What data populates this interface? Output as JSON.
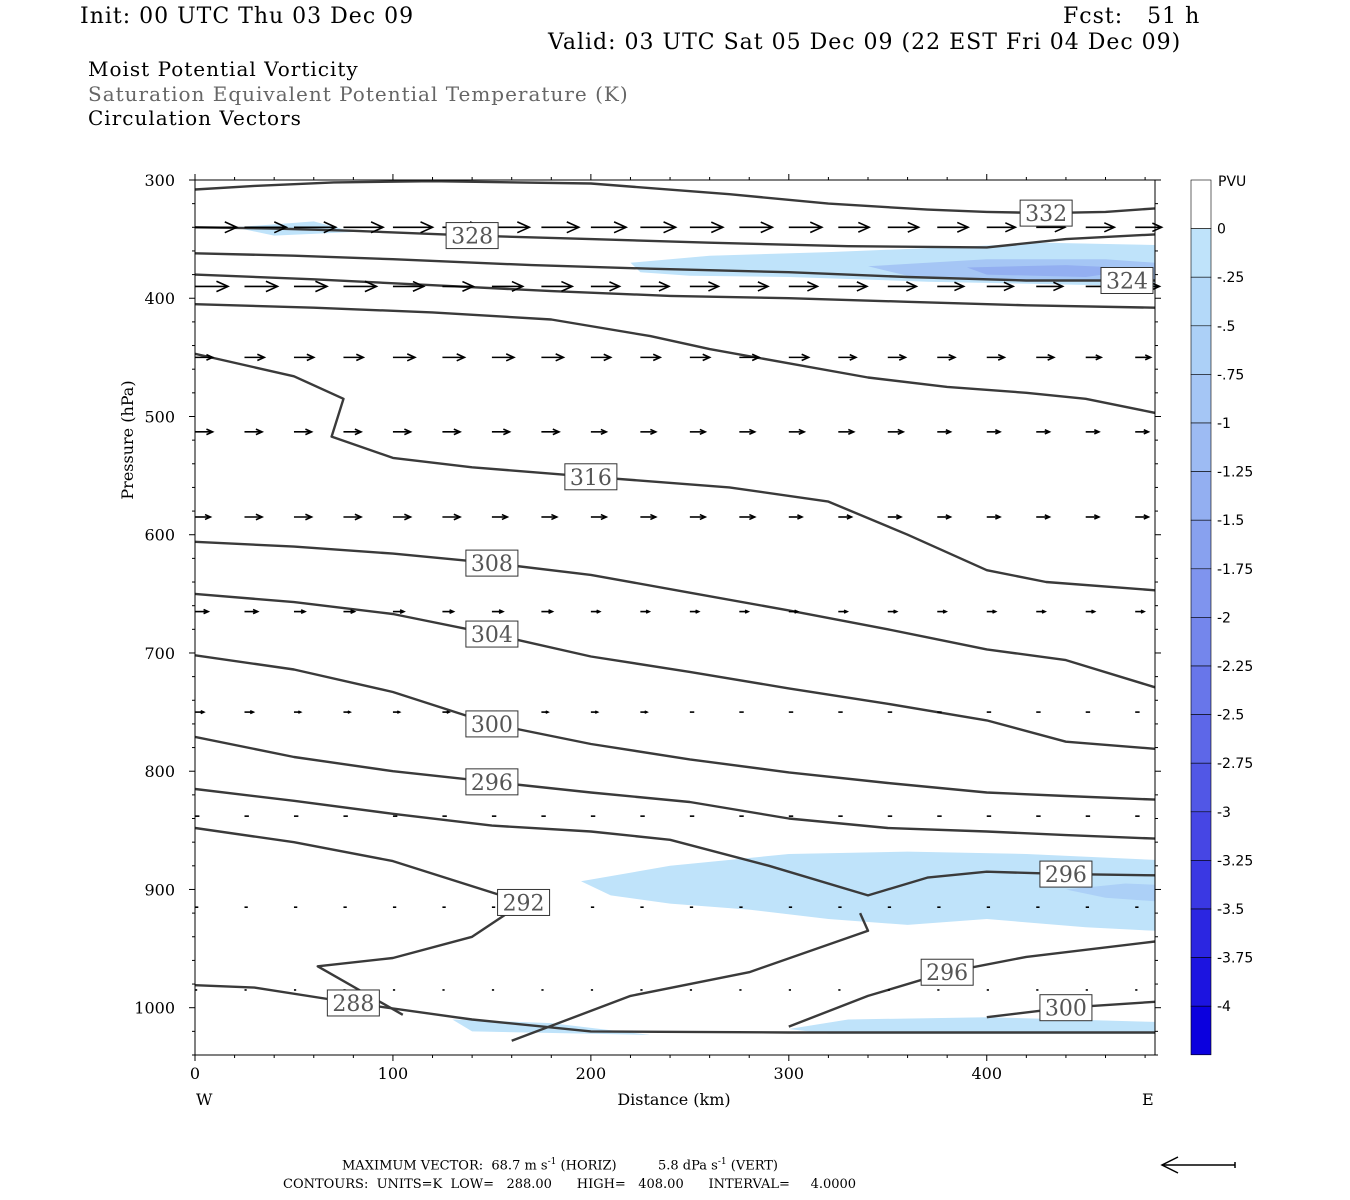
{
  "header": {
    "init": "Init: 00 UTC Thu 03 Dec 09",
    "fcst": "Fcst:   51 h",
    "valid": "Valid: 03 UTC Sat 05 Dec 09 (22 EST Fri 04 Dec 09)",
    "field1": "Moist Potential Vorticity",
    "field2": "Saturation Equivalent Potential Temperature (K)",
    "field3": "Circulation Vectors"
  },
  "footer": {
    "max_vector_label": "MAXIMUM VECTOR:",
    "max_vector_horiz": "68.7 m s",
    "horiz_label": "(HORIZ)",
    "max_vector_vert": "5.8 dPa s",
    "vert_label": "(VERT)",
    "exp": "-1",
    "contours": "CONTOURS:  UNITS=K  LOW=   288.00      HIGH=   408.00      INTERVAL=     4.0000"
  },
  "chart_data": {
    "type": "cross-section",
    "title": "Moist Potential Vorticity / Saturation Equivalent Potential Temperature (K) / Circulation Vectors",
    "xlabel": "Distance (km)",
    "ylabel": "Pressure (hPa)",
    "xlim": [
      0,
      485
    ],
    "ylim": [
      1040,
      300
    ],
    "x_ticks": [
      0,
      100,
      200,
      300,
      400
    ],
    "y_ticks": [
      300,
      400,
      500,
      600,
      700,
      800,
      900,
      1000
    ],
    "x_end_labels": [
      "W",
      "E"
    ],
    "colorbar": {
      "unit": "PVU",
      "labels": [
        "0",
        "-.25",
        "-.5",
        "-.75",
        "-1",
        "-1.25",
        "-1.5",
        "-1.75",
        "-2",
        "-2.25",
        "-2.5",
        "-2.75",
        "-3",
        "-3.25",
        "-3.5",
        "-3.75",
        "-4"
      ],
      "colors": [
        "#ffffff",
        "#bfe3fa",
        "#b4d9f9",
        "#acd0f7",
        "#a5c6f5",
        "#9dbbf3",
        "#93aff1",
        "#88a1ef",
        "#7f94ee",
        "#7486ec",
        "#6876ea",
        "#5d67e8",
        "#5157e6",
        "#4646e4",
        "#3a38e3",
        "#2b26e1",
        "#1c14e0",
        "#0b00de"
      ]
    },
    "theta_es_contours": [
      {
        "level": 332,
        "label": "332",
        "points": [
          [
            0,
            308
          ],
          [
            30,
            305
          ],
          [
            70,
            302
          ],
          [
            120,
            301
          ],
          [
            200,
            303
          ],
          [
            270,
            312
          ],
          [
            320,
            320
          ],
          [
            370,
            325
          ],
          [
            400,
            327
          ],
          [
            430,
            328
          ],
          [
            460,
            327
          ],
          [
            485,
            324
          ]
        ]
      },
      {
        "level": 328,
        "label": "328",
        "points": [
          [
            0,
            340
          ],
          [
            40,
            341
          ],
          [
            80,
            343
          ],
          [
            140,
            347
          ],
          [
            200,
            350
          ],
          [
            260,
            353
          ],
          [
            330,
            356
          ],
          [
            400,
            357
          ],
          [
            440,
            350
          ],
          [
            485,
            346
          ]
        ]
      },
      {
        "level": 324,
        "label": "324",
        "points": [
          [
            0,
            362
          ],
          [
            50,
            364
          ],
          [
            100,
            367
          ],
          [
            170,
            372
          ],
          [
            230,
            375
          ],
          [
            300,
            378
          ],
          [
            360,
            382
          ],
          [
            420,
            385
          ],
          [
            485,
            385
          ]
        ]
      },
      {
        "level": 324,
        "label": "",
        "points": [
          [
            0,
            380
          ],
          [
            60,
            384
          ],
          [
            120,
            389
          ],
          [
            180,
            394
          ],
          [
            240,
            398
          ],
          [
            300,
            400
          ],
          [
            360,
            403
          ],
          [
            420,
            406
          ],
          [
            485,
            408
          ]
        ]
      },
      {
        "level": 320,
        "label": "",
        "points": [
          [
            0,
            405
          ],
          [
            60,
            408
          ],
          [
            120,
            412
          ],
          [
            180,
            418
          ],
          [
            230,
            432
          ],
          [
            260,
            443
          ],
          [
            300,
            455
          ],
          [
            340,
            467
          ],
          [
            380,
            475
          ],
          [
            420,
            480
          ],
          [
            450,
            485
          ],
          [
            485,
            497
          ]
        ]
      },
      {
        "level": 316,
        "label": "316",
        "points": [
          [
            0,
            447
          ],
          [
            50,
            466
          ],
          [
            75,
            485
          ],
          [
            69,
            517
          ],
          [
            100,
            535
          ],
          [
            140,
            543
          ],
          [
            200,
            551
          ],
          [
            270,
            560
          ],
          [
            320,
            572
          ],
          [
            360,
            600
          ],
          [
            400,
            630
          ],
          [
            430,
            640
          ],
          [
            485,
            647
          ]
        ]
      },
      {
        "level": 308,
        "label": "308",
        "points": [
          [
            0,
            606
          ],
          [
            50,
            610
          ],
          [
            100,
            616
          ],
          [
            150,
            624
          ],
          [
            200,
            634
          ],
          [
            250,
            649
          ],
          [
            300,
            664
          ],
          [
            350,
            680
          ],
          [
            400,
            697
          ],
          [
            440,
            706
          ],
          [
            485,
            729
          ]
        ]
      },
      {
        "level": 304,
        "label": "304",
        "points": [
          [
            0,
            650
          ],
          [
            50,
            657
          ],
          [
            100,
            667
          ],
          [
            150,
            684
          ],
          [
            200,
            703
          ],
          [
            250,
            716
          ],
          [
            300,
            730
          ],
          [
            350,
            743
          ],
          [
            400,
            757
          ],
          [
            440,
            775
          ],
          [
            485,
            781
          ]
        ]
      },
      {
        "level": 300,
        "label": "300",
        "points": [
          [
            0,
            702
          ],
          [
            50,
            714
          ],
          [
            100,
            733
          ],
          [
            150,
            760
          ],
          [
            200,
            777
          ],
          [
            250,
            790
          ],
          [
            300,
            801
          ],
          [
            350,
            810
          ],
          [
            400,
            818
          ],
          [
            440,
            821
          ],
          [
            485,
            824
          ]
        ]
      },
      {
        "level": 296,
        "label": "296",
        "points": [
          [
            0,
            771
          ],
          [
            50,
            788
          ],
          [
            100,
            800
          ],
          [
            150,
            809
          ],
          [
            200,
            818
          ],
          [
            250,
            826
          ],
          [
            300,
            840
          ],
          [
            350,
            848
          ],
          [
            400,
            851
          ],
          [
            440,
            854
          ],
          [
            485,
            857
          ]
        ]
      },
      {
        "level": 296,
        "label": "296",
        "points": [
          [
            0,
            815
          ],
          [
            50,
            825
          ],
          [
            100,
            836
          ],
          [
            150,
            846
          ],
          [
            200,
            851
          ],
          [
            240,
            858
          ],
          [
            290,
            880
          ],
          [
            340,
            905
          ],
          [
            370,
            890
          ],
          [
            400,
            885
          ],
          [
            440,
            887
          ],
          [
            485,
            888
          ]
        ]
      },
      {
        "level": 292,
        "label": "292",
        "points": [
          [
            0,
            848
          ],
          [
            50,
            860
          ],
          [
            100,
            876
          ],
          [
            166,
            911
          ],
          [
            140,
            940
          ],
          [
            100,
            958
          ],
          [
            62,
            965
          ],
          [
            105,
            1006
          ]
        ]
      },
      {
        "level": 288,
        "label": "288",
        "points": [
          [
            0,
            981
          ],
          [
            30,
            983
          ],
          [
            80,
            996
          ],
          [
            140,
            1010
          ],
          [
            200,
            1020
          ],
          [
            300,
            1021
          ],
          [
            485,
            1021
          ]
        ]
      },
      {
        "level": 292,
        "label": "",
        "points": [
          [
            160,
            1028
          ],
          [
            220,
            990
          ],
          [
            280,
            970
          ],
          [
            340,
            935
          ],
          [
            336,
            920
          ]
        ]
      },
      {
        "level": 296,
        "label": "296",
        "points": [
          [
            300,
            1016
          ],
          [
            340,
            990
          ],
          [
            380,
            970
          ],
          [
            420,
            957
          ],
          [
            485,
            944
          ]
        ]
      },
      {
        "level": 300,
        "label": "300",
        "points": [
          [
            400,
            1008
          ],
          [
            440,
            1000
          ],
          [
            485,
            995
          ]
        ]
      }
    ],
    "mpv_negative_regions": [
      {
        "pvu": -0.25,
        "points": [
          [
            20,
            340
          ],
          [
            60,
            335
          ],
          [
            80,
            344
          ],
          [
            40,
            347
          ]
        ]
      },
      {
        "pvu": -0.25,
        "points": [
          [
            220,
            370
          ],
          [
            260,
            364
          ],
          [
            320,
            361
          ],
          [
            380,
            357
          ],
          [
            430,
            353
          ],
          [
            485,
            355
          ],
          [
            485,
            390
          ],
          [
            430,
            388
          ],
          [
            370,
            386
          ],
          [
            300,
            382
          ],
          [
            250,
            381
          ],
          [
            225,
            378
          ]
        ]
      },
      {
        "pvu": -1.0,
        "points": [
          [
            340,
            373
          ],
          [
            400,
            367
          ],
          [
            460,
            367
          ],
          [
            485,
            370
          ],
          [
            485,
            385
          ],
          [
            420,
            386
          ],
          [
            360,
            381
          ]
        ]
      },
      {
        "pvu": -1.5,
        "points": [
          [
            390,
            374
          ],
          [
            440,
            372
          ],
          [
            480,
            375
          ],
          [
            450,
            382
          ],
          [
            400,
            380
          ]
        ]
      },
      {
        "pvu": -0.25,
        "points": [
          [
            195,
            893
          ],
          [
            240,
            880
          ],
          [
            300,
            870
          ],
          [
            360,
            868
          ],
          [
            420,
            870
          ],
          [
            485,
            875
          ],
          [
            485,
            935
          ],
          [
            450,
            932
          ],
          [
            400,
            925
          ],
          [
            360,
            930
          ],
          [
            320,
            925
          ],
          [
            280,
            917
          ],
          [
            240,
            912
          ],
          [
            210,
            905
          ]
        ]
      },
      {
        "pvu": -0.75,
        "points": [
          [
            440,
            900
          ],
          [
            470,
            895
          ],
          [
            485,
            896
          ],
          [
            485,
            910
          ],
          [
            460,
            907
          ]
        ]
      },
      {
        "pvu": -0.25,
        "points": [
          [
            130,
            1010
          ],
          [
            180,
            1013
          ],
          [
            230,
            1023
          ],
          [
            140,
            1020
          ]
        ]
      },
      {
        "pvu": -0.25,
        "points": [
          [
            300,
            1018
          ],
          [
            330,
            1010
          ],
          [
            400,
            1008
          ],
          [
            485,
            1012
          ],
          [
            485,
            1022
          ],
          [
            320,
            1022
          ]
        ]
      }
    ],
    "circulation_vectors": [
      {
        "level": 340,
        "u": [
          38,
          38,
          38,
          36,
          36,
          36,
          34,
          34,
          32,
          32,
          30,
          30,
          30,
          28,
          28,
          28,
          26,
          26,
          26,
          24
        ]
      },
      {
        "level": 390,
        "u": [
          30,
          30,
          30,
          30,
          28,
          28,
          28,
          28,
          26,
          26,
          26,
          26,
          26,
          26,
          26,
          24,
          24,
          24,
          22,
          22
        ]
      },
      {
        "level": 450,
        "u": [
          16,
          18,
          18,
          18,
          20,
          20,
          20,
          20,
          18,
          18,
          18,
          18,
          18,
          16,
          16,
          16,
          16,
          16,
          14,
          14
        ]
      },
      {
        "level": 513,
        "u": [
          16,
          16,
          16,
          16,
          16,
          16,
          16,
          16,
          14,
          14,
          14,
          14,
          14,
          14,
          14,
          12,
          12,
          12,
          12,
          12
        ]
      },
      {
        "level": 585,
        "u": [
          14,
          16,
          16,
          16,
          16,
          16,
          14,
          14,
          14,
          14,
          14,
          14,
          12,
          12,
          12,
          12,
          12,
          12,
          12,
          12
        ]
      },
      {
        "level": 665,
        "u": [
          12,
          12,
          10,
          10,
          10,
          10,
          10,
          10,
          8,
          8,
          8,
          8,
          8,
          8,
          8,
          8,
          8,
          8,
          8,
          8
        ]
      },
      {
        "level": 750,
        "u": [
          8,
          8,
          6,
          6,
          6,
          6,
          6,
          6,
          6,
          6,
          4,
          4,
          4,
          4,
          4,
          4,
          4,
          4,
          4,
          4
        ]
      },
      {
        "level": 838,
        "u": [
          4,
          4,
          4,
          4,
          4,
          4,
          4,
          4,
          4,
          4,
          4,
          4,
          4,
          4,
          4,
          4,
          4,
          4,
          4,
          4
        ]
      },
      {
        "level": 915,
        "u": [
          3,
          3,
          3,
          3,
          3,
          3,
          3,
          3,
          3,
          3,
          3,
          3,
          3,
          3,
          3,
          3,
          3,
          3,
          3,
          3
        ]
      },
      {
        "level": 985,
        "u": [
          2,
          2,
          2,
          2,
          2,
          2,
          2,
          2,
          2,
          2,
          2,
          2,
          2,
          2,
          2,
          2,
          2,
          2,
          2,
          2
        ]
      }
    ],
    "max_vector": {
      "horiz": 68.7,
      "horiz_unit": "m s-1",
      "vert": 5.8,
      "vert_unit": "dPa s-1"
    },
    "contour_info": {
      "units": "K",
      "low": 288.0,
      "high": 408.0,
      "interval": 4.0
    }
  }
}
